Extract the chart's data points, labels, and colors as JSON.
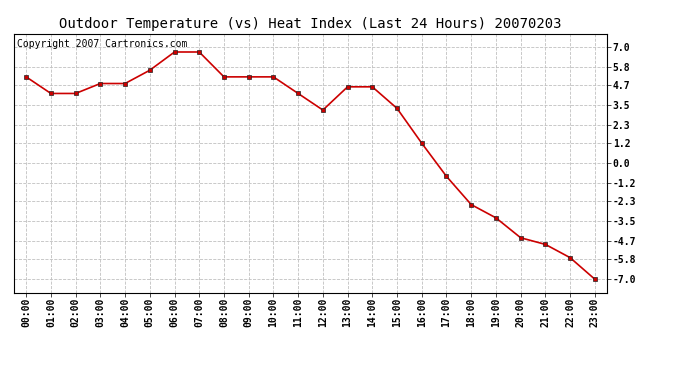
{
  "title": "Outdoor Temperature (vs) Heat Index (Last 24 Hours) 20070203",
  "copyright_text": "Copyright 2007 Cartronics.com",
  "line_color": "#cc0000",
  "marker_color": "#222222",
  "background_color": "#ffffff",
  "grid_color": "#c0c0c0",
  "hours": [
    "00:00",
    "01:00",
    "02:00",
    "03:00",
    "04:00",
    "05:00",
    "06:00",
    "07:00",
    "08:00",
    "09:00",
    "10:00",
    "11:00",
    "12:00",
    "13:00",
    "14:00",
    "15:00",
    "16:00",
    "17:00",
    "18:00",
    "19:00",
    "20:00",
    "21:00",
    "22:00",
    "23:00"
  ],
  "values": [
    5.2,
    4.2,
    4.2,
    4.8,
    4.8,
    5.6,
    6.7,
    6.7,
    5.2,
    5.2,
    5.2,
    4.2,
    3.2,
    4.6,
    4.6,
    3.3,
    1.2,
    -0.8,
    -2.5,
    -3.3,
    -4.5,
    -4.9,
    -5.7,
    -7.0
  ],
  "ylim": [
    -7.8,
    7.8
  ],
  "yticks": [
    7.0,
    5.8,
    4.7,
    3.5,
    2.3,
    1.2,
    0.0,
    -1.2,
    -2.3,
    -3.5,
    -4.7,
    -5.8,
    -7.0
  ],
  "title_fontsize": 10,
  "tick_fontsize": 7,
  "copyright_fontsize": 7
}
